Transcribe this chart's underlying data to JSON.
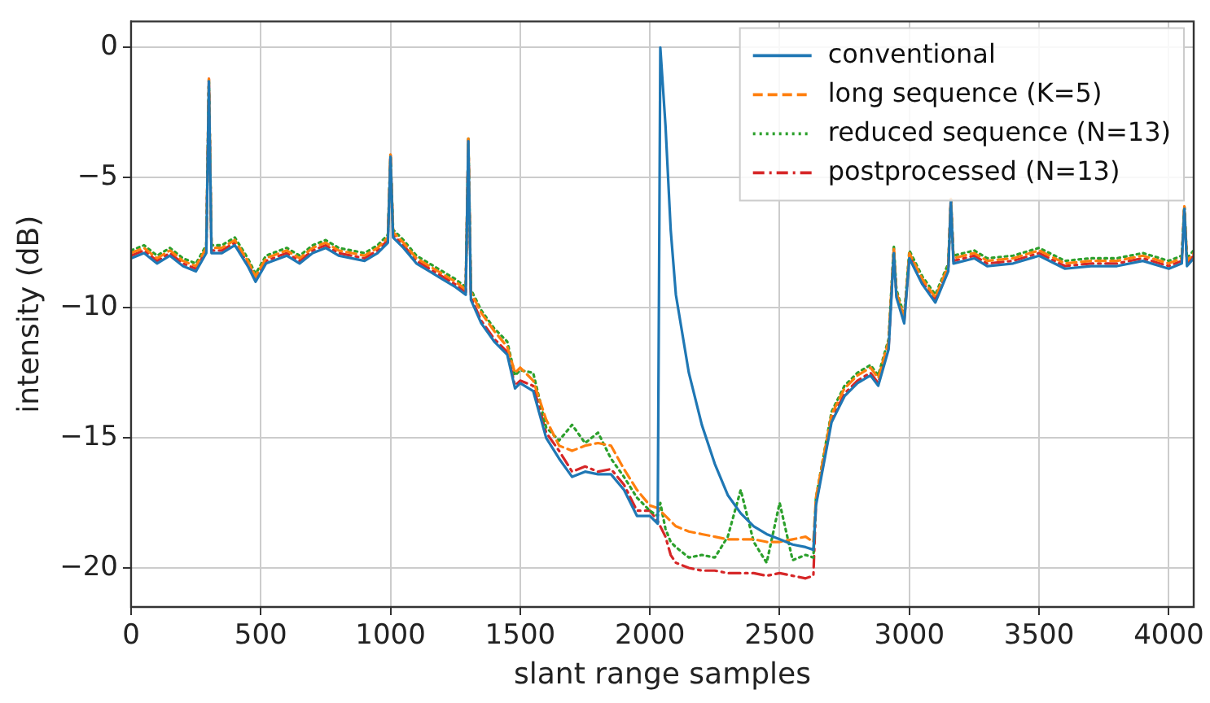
{
  "chart_data": {
    "type": "line",
    "xlabel": "slant range samples",
    "ylabel": "intensity (dB)",
    "xlim": [
      0,
      4096
    ],
    "ylim": [
      -21.5,
      1
    ],
    "xticks": [
      0,
      500,
      1000,
      1500,
      2000,
      2500,
      3000,
      3500,
      4000
    ],
    "yticks": [
      -20,
      -15,
      -10,
      -5,
      0
    ],
    "grid": true,
    "legend": "top right",
    "marker": "none",
    "x": [
      0,
      50,
      100,
      150,
      200,
      250,
      290,
      300,
      310,
      350,
      400,
      450,
      480,
      520,
      600,
      650,
      700,
      750,
      800,
      850,
      900,
      950,
      990,
      1000,
      1010,
      1050,
      1100,
      1150,
      1200,
      1250,
      1290,
      1300,
      1310,
      1350,
      1400,
      1450,
      1480,
      1500,
      1550,
      1600,
      1650,
      1700,
      1750,
      1800,
      1850,
      1900,
      1950,
      2000,
      2030,
      2040,
      2060,
      2080,
      2100,
      2150,
      2200,
      2250,
      2300,
      2350,
      2400,
      2450,
      2500,
      2550,
      2600,
      2630,
      2640,
      2700,
      2750,
      2800,
      2850,
      2880,
      2920,
      2940,
      2950,
      2980,
      3000,
      3050,
      3100,
      3150,
      3160,
      3170,
      3250,
      3300,
      3400,
      3500,
      3600,
      3700,
      3800,
      3900,
      4000,
      4050,
      4060,
      4070,
      4096
    ],
    "series": [
      {
        "name": "conventional",
        "color": "#1f77b4",
        "line_style": "solid",
        "values": [
          -8.1,
          -7.9,
          -8.3,
          -8,
          -8.4,
          -8.6,
          -7.9,
          -1.3,
          -7.9,
          -7.9,
          -7.6,
          -8.4,
          -9,
          -8.3,
          -8,
          -8.3,
          -7.9,
          -7.7,
          -8,
          -8.1,
          -8.2,
          -7.9,
          -7.5,
          -4.2,
          -7.3,
          -7.7,
          -8.3,
          -8.6,
          -8.9,
          -9.2,
          -9.5,
          -3.6,
          -9.7,
          -10.6,
          -11.3,
          -11.8,
          -13.1,
          -12.9,
          -13.2,
          -15,
          -15.8,
          -16.5,
          -16.3,
          -16.4,
          -16.4,
          -17,
          -18,
          -18,
          -18.3,
          0,
          -3,
          -7,
          -9.5,
          -12.5,
          -14.5,
          -16,
          -17.2,
          -17.9,
          -18.4,
          -18.7,
          -18.9,
          -19.1,
          -19.2,
          -19.3,
          -17.6,
          -14.4,
          -13.4,
          -12.9,
          -12.6,
          -13,
          -11.6,
          -7.9,
          -9.6,
          -10.6,
          -8.1,
          -9.1,
          -9.8,
          -8.6,
          -5.9,
          -8.3,
          -8.1,
          -8.4,
          -8.3,
          -8,
          -8.5,
          -8.4,
          -8.4,
          -8.2,
          -8.5,
          -8.3,
          -6.2,
          -8.4,
          -8.1
        ]
      },
      {
        "name": "long sequence (K=5)",
        "color": "#ff7f0e",
        "line_style": "dashed",
        "values": [
          -7.9,
          -7.7,
          -8.1,
          -7.8,
          -8.2,
          -8.4,
          -7.7,
          -1.2,
          -7.7,
          -7.7,
          -7.4,
          -8.2,
          -8.8,
          -8.1,
          -7.8,
          -8.1,
          -7.7,
          -7.5,
          -7.8,
          -7.9,
          -8,
          -7.7,
          -7.3,
          -4.1,
          -7.1,
          -7.5,
          -8.1,
          -8.4,
          -8.7,
          -9,
          -9.3,
          -3.5,
          -9.4,
          -10.2,
          -10.9,
          -11.5,
          -12.5,
          -12.3,
          -12.8,
          -14.3,
          -15.3,
          -15.5,
          -15.3,
          -15.2,
          -15.3,
          -16.2,
          -17,
          -17.6,
          -17.7,
          -17.8,
          -18,
          -18.2,
          -18.4,
          -18.6,
          -18.7,
          -18.8,
          -18.9,
          -18.9,
          -18.9,
          -19,
          -19,
          -18.9,
          -18.8,
          -19,
          -17.3,
          -14.1,
          -13.1,
          -12.6,
          -12.3,
          -12.7,
          -11.3,
          -7.7,
          -9.4,
          -10.4,
          -7.9,
          -8.9,
          -9.6,
          -8.4,
          -5.8,
          -8.1,
          -7.9,
          -8.2,
          -8.1,
          -7.8,
          -8.3,
          -8.2,
          -8.2,
          -8,
          -8.3,
          -8.1,
          -6.1,
          -8.2,
          -7.9
        ]
      },
      {
        "name": "reduced sequence (N=13)",
        "color": "#2ca02c",
        "line_style": "dotted",
        "values": [
          -7.8,
          -7.6,
          -8,
          -7.7,
          -8.1,
          -8.3,
          -7.6,
          -1.2,
          -7.6,
          -7.6,
          -7.3,
          -8.1,
          -8.7,
          -8,
          -7.7,
          -8,
          -7.6,
          -7.4,
          -7.7,
          -7.8,
          -7.9,
          -7.6,
          -7.2,
          -4.1,
          -7,
          -7.4,
          -8,
          -8.3,
          -8.6,
          -8.9,
          -9.2,
          -3.5,
          -9.3,
          -10.1,
          -10.8,
          -11.3,
          -12.6,
          -12.4,
          -12.5,
          -14.6,
          -15.1,
          -14.5,
          -15.2,
          -14.8,
          -15.8,
          -16.5,
          -17.3,
          -17.8,
          -18,
          -17.5,
          -18.5,
          -19,
          -19.2,
          -19.6,
          -19.5,
          -19.6,
          -18.8,
          -17,
          -19,
          -19.8,
          -17.5,
          -19.7,
          -19.5,
          -19.6,
          -17.3,
          -14,
          -13,
          -12.5,
          -12.2,
          -12.6,
          -11.2,
          -7.6,
          -9.3,
          -10.3,
          -7.8,
          -8.8,
          -9.5,
          -8.3,
          -5.8,
          -8,
          -7.8,
          -8.1,
          -8,
          -7.7,
          -8.2,
          -8.1,
          -8.1,
          -7.9,
          -8.2,
          -8,
          -6.1,
          -8.1,
          -7.8
        ]
      },
      {
        "name": "postprocessed (N=13)",
        "color": "#d62728",
        "line_style": "dashdot",
        "values": [
          -8,
          -7.8,
          -8.2,
          -7.9,
          -8.3,
          -8.5,
          -7.8,
          -1.2,
          -7.8,
          -7.8,
          -7.5,
          -8.3,
          -8.9,
          -8.2,
          -7.9,
          -8.2,
          -7.8,
          -7.6,
          -7.9,
          -8,
          -8.1,
          -7.8,
          -7.4,
          -4.1,
          -7.2,
          -7.6,
          -8.2,
          -8.5,
          -8.8,
          -9.1,
          -9.4,
          -3.5,
          -9.6,
          -10.5,
          -11.2,
          -11.7,
          -13,
          -12.8,
          -13,
          -14.8,
          -15.5,
          -16.3,
          -16.1,
          -16.3,
          -16.2,
          -16.8,
          -17.8,
          -17.8,
          -18.2,
          -18.4,
          -18.8,
          -19.5,
          -19.8,
          -20,
          -20.1,
          -20.1,
          -20.2,
          -20.2,
          -20.2,
          -20.3,
          -20.2,
          -20.3,
          -20.4,
          -20.3,
          -17.5,
          -14.3,
          -13.3,
          -12.8,
          -12.5,
          -12.9,
          -11.5,
          -7.8,
          -9.5,
          -10.5,
          -8,
          -9,
          -9.7,
          -8.5,
          -5.8,
          -8.2,
          -8,
          -8.3,
          -8.2,
          -7.9,
          -8.4,
          -8.3,
          -8.3,
          -8.1,
          -8.4,
          -8.2,
          -6.1,
          -8.3,
          -8
        ]
      }
    ]
  }
}
